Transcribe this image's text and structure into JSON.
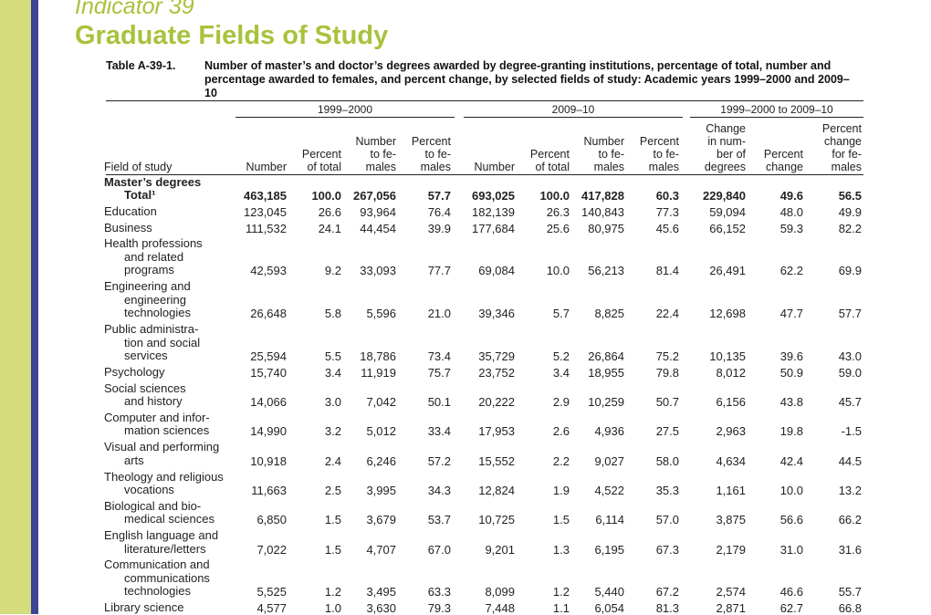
{
  "header": {
    "indicator": "Indicator 39",
    "title": "Graduate Fields of Study",
    "table_label": "Table A-39-1.",
    "caption": "Number of master’s and doctor’s degrees awarded by degree-granting institutions, percentage of total, number and percentage awarded to females, and percent change, by selected fields of study: Academic years 1999–2000 and 2009–10"
  },
  "groups": [
    "1999–2000",
    "2009–10",
    "1999–2000 to 2009–10"
  ],
  "columns": {
    "field": "Field of study",
    "c1": "Number",
    "c2": [
      "Percent",
      "of total"
    ],
    "c3": [
      "Number",
      "to fe-",
      "males"
    ],
    "c4": [
      "Percent",
      "to fe-",
      "males"
    ],
    "c5": "Number",
    "c6": [
      "Percent",
      "of total"
    ],
    "c7": [
      "Number",
      "to fe-",
      "males"
    ],
    "c8": [
      "Percent",
      "to fe-",
      "males"
    ],
    "c9": [
      "Change",
      "in num-",
      "ber of",
      "degrees"
    ],
    "c10": [
      "Percent",
      "change"
    ],
    "c11": [
      "Percent",
      "change",
      "for fe-",
      "males"
    ]
  },
  "section_heading": "Master’s degrees",
  "rows": [
    {
      "label": [
        "Total¹"
      ],
      "bold": true,
      "values": [
        "463,185",
        "100.0",
        "267,056",
        "57.7",
        "693,025",
        "100.0",
        "417,828",
        "60.3",
        "229,840",
        "49.6",
        "56.5"
      ]
    },
    {
      "label": [
        "Education"
      ],
      "values": [
        "123,045",
        "26.6",
        "93,964",
        "76.4",
        "182,139",
        "26.3",
        "140,843",
        "77.3",
        "59,094",
        "48.0",
        "49.9"
      ]
    },
    {
      "label": [
        "Business"
      ],
      "values": [
        "111,532",
        "24.1",
        "44,454",
        "39.9",
        "177,684",
        "25.6",
        "80,975",
        "45.6",
        "66,152",
        "59.3",
        "82.2"
      ]
    },
    {
      "label": [
        "Health professions",
        "and related",
        "programs"
      ],
      "values": [
        "42,593",
        "9.2",
        "33,093",
        "77.7",
        "69,084",
        "10.0",
        "56,213",
        "81.4",
        "26,491",
        "62.2",
        "69.9"
      ]
    },
    {
      "label": [
        "Engineering and",
        "engineering",
        "technologies"
      ],
      "values": [
        "26,648",
        "5.8",
        "5,596",
        "21.0",
        "39,346",
        "5.7",
        "8,825",
        "22.4",
        "12,698",
        "47.7",
        "57.7"
      ]
    },
    {
      "label": [
        "Public administra-",
        "tion and social",
        "services"
      ],
      "values": [
        "25,594",
        "5.5",
        "18,786",
        "73.4",
        "35,729",
        "5.2",
        "26,864",
        "75.2",
        "10,135",
        "39.6",
        "43.0"
      ]
    },
    {
      "label": [
        "Psychology"
      ],
      "values": [
        "15,740",
        "3.4",
        "11,919",
        "75.7",
        "23,752",
        "3.4",
        "18,955",
        "79.8",
        "8,012",
        "50.9",
        "59.0"
      ]
    },
    {
      "label": [
        "Social sciences",
        "and history"
      ],
      "values": [
        "14,066",
        "3.0",
        "7,042",
        "50.1",
        "20,222",
        "2.9",
        "10,259",
        "50.7",
        "6,156",
        "43.8",
        "45.7"
      ]
    },
    {
      "label": [
        "Computer and infor-",
        "mation sciences"
      ],
      "values": [
        "14,990",
        "3.2",
        "5,012",
        "33.4",
        "17,953",
        "2.6",
        "4,936",
        "27.5",
        "2,963",
        "19.8",
        "-1.5"
      ]
    },
    {
      "label": [
        "Visual and performing",
        "arts"
      ],
      "values": [
        "10,918",
        "2.4",
        "6,246",
        "57.2",
        "15,552",
        "2.2",
        "9,027",
        "58.0",
        "4,634",
        "42.4",
        "44.5"
      ]
    },
    {
      "label": [
        "Theology and religious",
        "vocations"
      ],
      "values": [
        "11,663",
        "2.5",
        "3,995",
        "34.3",
        "12,824",
        "1.9",
        "4,522",
        "35.3",
        "1,161",
        "10.0",
        "13.2"
      ]
    },
    {
      "label": [
        "Biological and bio-",
        "medical sciences"
      ],
      "values": [
        "6,850",
        "1.5",
        "3,679",
        "53.7",
        "10,725",
        "1.5",
        "6,114",
        "57.0",
        "3,875",
        "56.6",
        "66.2"
      ]
    },
    {
      "label": [
        "English language and",
        "literature/letters"
      ],
      "values": [
        "7,022",
        "1.5",
        "4,707",
        "67.0",
        "9,201",
        "1.3",
        "6,195",
        "67.3",
        "2,179",
        "31.0",
        "31.6"
      ]
    },
    {
      "label": [
        "Communication and",
        "communications",
        "technologies"
      ],
      "values": [
        "5,525",
        "1.2",
        "3,495",
        "63.3",
        "8,099",
        "1.2",
        "5,440",
        "67.2",
        "2,574",
        "46.6",
        "55.7"
      ]
    },
    {
      "label": [
        "Library science"
      ],
      "values": [
        "4,577",
        "1.0",
        "3,630",
        "79.3",
        "7,448",
        "1.1",
        "6,054",
        "81.3",
        "2,871",
        "62.7",
        "66.8"
      ]
    }
  ]
}
